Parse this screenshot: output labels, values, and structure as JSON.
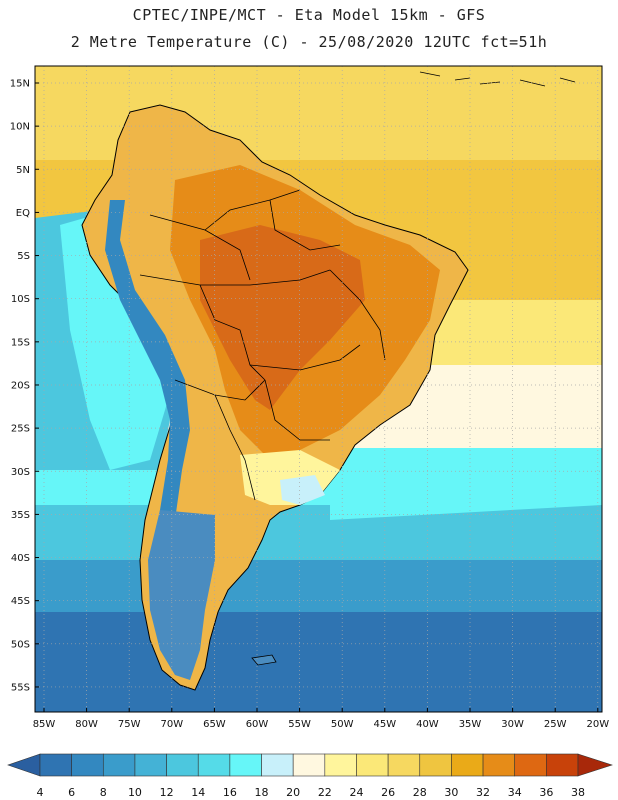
{
  "header": {
    "line1": "CPTEC/INPE/MCT -  Eta Model 15km - GFS",
    "line2": "2 Metre Temperature (C) - 25/08/2020 12UTC fct=51h"
  },
  "axes": {
    "lat_labels": [
      "15N",
      "10N",
      "5N",
      "EQ",
      "5S",
      "10S",
      "15S",
      "20S",
      "25S",
      "30S",
      "35S",
      "40S",
      "45S",
      "50S",
      "55S"
    ],
    "lon_labels": [
      "85W",
      "80W",
      "75W",
      "70W",
      "65W",
      "60W",
      "55W",
      "50W",
      "45W",
      "40W",
      "35W",
      "30W",
      "25W",
      "20W"
    ]
  },
  "colorbar": {
    "ticks": [
      "4",
      "6",
      "8",
      "10",
      "12",
      "14",
      "16",
      "18",
      "20",
      "22",
      "24",
      "26",
      "28",
      "30",
      "32",
      "34",
      "36",
      "38"
    ],
    "colors": [
      "#2a5fa0",
      "#2f74b2",
      "#3388c0",
      "#3a9ccb",
      "#44b2d6",
      "#4cc7de",
      "#55dbe8",
      "#66f6f8",
      "#c8f0fa",
      "#fff8e0",
      "#fff59c",
      "#fbe878",
      "#f6d860",
      "#efc540",
      "#eaaa18",
      "#e68c18",
      "#de6812",
      "#c8420a",
      "#a8280a"
    ]
  },
  "map": {
    "region": "South America",
    "variable": "2 m temperature",
    "units": "C",
    "colors": {
      "ocean_tropical": "#f2c640",
      "ocean_north": "#f6d860",
      "ocean_mid": "#fbe878",
      "ocean_pale": "#fff8e0",
      "ocean_cyan": "#66f6f8",
      "ocean_teal": "#4cc7de",
      "ocean_blue": "#3a9ccb",
      "ocean_deep": "#2f74b2",
      "land_warm": "#efb648",
      "land_hot": "#e68c18",
      "land_core": "#d86a18",
      "andes_cold": "#3388c0",
      "patagonia": "#4a8cc0",
      "south_land": "#fff59c",
      "uruguay": "#c8f0fa",
      "boundary": "#000000",
      "grid": "#a8a8a8"
    }
  }
}
